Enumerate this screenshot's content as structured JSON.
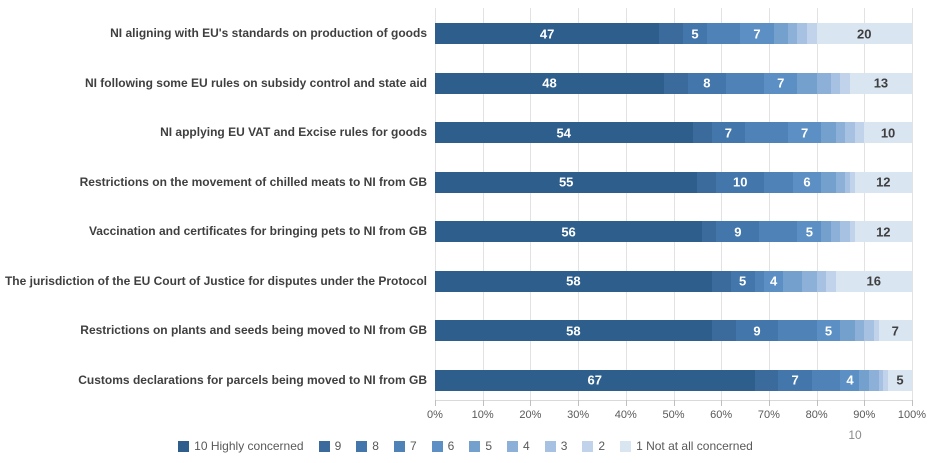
{
  "page_number": "10",
  "chart_data": {
    "type": "bar",
    "orientation": "horizontal-stacked",
    "title": "",
    "xlabel": "",
    "ylabel": "",
    "xlim": [
      0,
      100
    ],
    "xticks": [
      "0%",
      "10%",
      "20%",
      "30%",
      "40%",
      "50%",
      "60%",
      "70%",
      "80%",
      "90%",
      "100%"
    ],
    "grid": true,
    "legend_position": "bottom",
    "categories": [
      "NI aligning with EU's standards on production of goods",
      "NI following some EU rules on subsidy control and state aid",
      "NI applying EU VAT and Excise rules for goods",
      "Restrictions on the movement of chilled meats to NI from GB",
      "Vaccination and certificates for bringing pets to NI from GB",
      "The jurisdiction of the EU Court of Justice for disputes under  the Protocol",
      "Restrictions on plants and seeds being moved to NI from GB",
      "Customs declarations for parcels being moved to NI from GB"
    ],
    "series": [
      {
        "name": "10 Highly concerned",
        "color": "#2E5F8C",
        "values": [
          47,
          48,
          54,
          55,
          56,
          58,
          58,
          67
        ]
      },
      {
        "name": "9",
        "color": "#3A6B9C",
        "values": [
          5,
          5,
          4,
          4,
          3,
          4,
          5,
          5
        ]
      },
      {
        "name": "8",
        "color": "#4377AB",
        "values": [
          5,
          8,
          7,
          10,
          9,
          5,
          9,
          7
        ]
      },
      {
        "name": "7",
        "color": "#4F83B8",
        "values": [
          7,
          8,
          9,
          6,
          8,
          2,
          8,
          6
        ]
      },
      {
        "name": "6",
        "color": "#5C90C4",
        "values": [
          7,
          7,
          7,
          6,
          5,
          4,
          5,
          4
        ]
      },
      {
        "name": "5",
        "color": "#74A0CE",
        "values": [
          3,
          4,
          3,
          3,
          2,
          4,
          3,
          2
        ]
      },
      {
        "name": "4",
        "color": "#8CB0D8",
        "values": [
          2,
          3,
          2,
          2,
          2,
          3,
          2,
          2
        ]
      },
      {
        "name": "3",
        "color": "#A6C1E1",
        "values": [
          2,
          2,
          2,
          1,
          2,
          2,
          2,
          1
        ]
      },
      {
        "name": "2",
        "color": "#C1D3EA",
        "values": [
          2,
          2,
          2,
          1,
          1,
          2,
          1,
          1
        ]
      },
      {
        "name": "1 Not at all concerned",
        "color": "#DAE5F2",
        "values": [
          20,
          13,
          10,
          12,
          12,
          16,
          7,
          5
        ]
      }
    ],
    "labeled_series_indexes": [
      0,
      2,
      4,
      9
    ],
    "shown_value_labels": {
      "NI aligning with EU's standards on production of goods": [
        47,
        5,
        7,
        20
      ],
      "NI following some EU rules on subsidy control and state aid": [
        48,
        8,
        7,
        13
      ],
      "NI applying EU VAT and Excise rules for goods": [
        54,
        7,
        7,
        10
      ],
      "Restrictions on the movement of chilled meats to NI from GB": [
        55,
        10,
        6,
        12
      ],
      "Vaccination and certificates for bringing pets to NI from GB": [
        56,
        9,
        5,
        12
      ],
      "The jurisdiction of the EU Court of Justice for disputes under  the Protocol": [
        58,
        5,
        4,
        16
      ],
      "Restrictions on plants and seeds being moved to NI from GB": [
        58,
        9,
        5,
        7
      ],
      "Customs declarations for parcels being moved to NI from GB": [
        67,
        7,
        4,
        5
      ]
    }
  }
}
